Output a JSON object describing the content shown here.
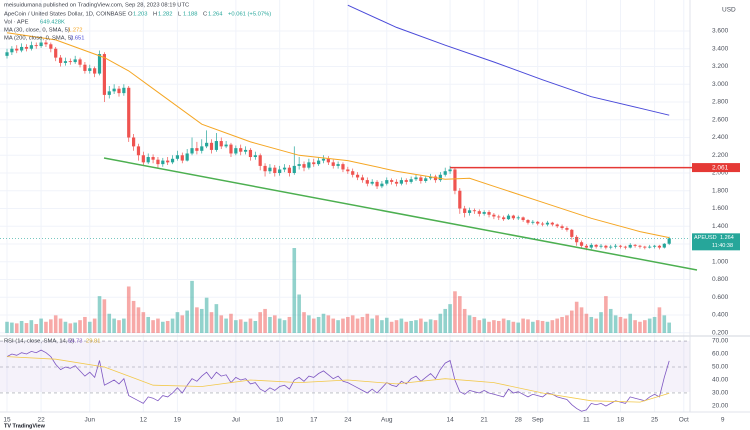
{
  "chart_data": {
    "type": "candlestick",
    "publisher": "meisuidumana published on TradingView.com, Sep 28, 2023 08:19 UTC",
    "title": "ApeCoin / United States Dollar, 1D, COINBASE",
    "ohlc_labels": [
      "O",
      "H",
      "L",
      "C"
    ],
    "change_label": "+0.061 (+5.07%)",
    "currency": "USD",
    "symbol": "APEUSD",
    "countdown": "11:40:38",
    "up_color": "#26a69a",
    "down_color": "#ef5350",
    "grid": true,
    "ohlc": [
      [
        3.32,
        3.4,
        3.29,
        3.36
      ],
      [
        3.36,
        3.43,
        3.33,
        3.4
      ],
      [
        3.4,
        3.44,
        3.35,
        3.38
      ],
      [
        3.38,
        3.46,
        3.36,
        3.42
      ],
      [
        3.42,
        3.45,
        3.37,
        3.4
      ],
      [
        3.4,
        3.48,
        3.38,
        3.44
      ],
      [
        3.44,
        3.47,
        3.4,
        3.43
      ],
      [
        3.43,
        3.52,
        3.41,
        3.47
      ],
      [
        3.47,
        3.5,
        3.42,
        3.45
      ],
      [
        3.45,
        3.47,
        3.36,
        3.4
      ],
      [
        3.4,
        3.42,
        3.26,
        3.3
      ],
      [
        3.3,
        3.33,
        3.2,
        3.24
      ],
      [
        3.24,
        3.3,
        3.21,
        3.26
      ],
      [
        3.26,
        3.29,
        3.22,
        3.25
      ],
      [
        3.25,
        3.32,
        3.23,
        3.28
      ],
      [
        3.28,
        3.3,
        3.19,
        3.22
      ],
      [
        3.22,
        3.25,
        3.12,
        3.15
      ],
      [
        3.15,
        3.22,
        3.12,
        3.18
      ],
      [
        3.18,
        3.2,
        3.08,
        3.12
      ],
      [
        3.12,
        3.38,
        3.1,
        3.34
      ],
      [
        3.34,
        3.36,
        2.8,
        2.88
      ],
      [
        2.88,
        2.98,
        2.84,
        2.92
      ],
      [
        2.92,
        3.0,
        2.89,
        2.95
      ],
      [
        2.95,
        2.98,
        2.86,
        2.9
      ],
      [
        2.9,
        3.0,
        2.87,
        2.96
      ],
      [
        2.96,
        2.98,
        2.35,
        2.4
      ],
      [
        2.4,
        2.44,
        2.25,
        2.3
      ],
      [
        2.3,
        2.33,
        2.14,
        2.2
      ],
      [
        2.2,
        2.24,
        2.08,
        2.12
      ],
      [
        2.12,
        2.22,
        2.1,
        2.18
      ],
      [
        2.18,
        2.21,
        2.11,
        2.15
      ],
      [
        2.15,
        2.18,
        2.06,
        2.1
      ],
      [
        2.1,
        2.17,
        2.07,
        2.14
      ],
      [
        2.14,
        2.18,
        2.09,
        2.12
      ],
      [
        2.12,
        2.2,
        2.1,
        2.16
      ],
      [
        2.16,
        2.25,
        2.14,
        2.2
      ],
      [
        2.2,
        2.23,
        2.11,
        2.14
      ],
      [
        2.14,
        2.27,
        2.13,
        2.22
      ],
      [
        2.22,
        2.4,
        2.2,
        2.28
      ],
      [
        2.28,
        2.35,
        2.21,
        2.25
      ],
      [
        2.25,
        2.38,
        2.22,
        2.3
      ],
      [
        2.3,
        2.48,
        2.28,
        2.34
      ],
      [
        2.34,
        2.38,
        2.22,
        2.26
      ],
      [
        2.26,
        2.45,
        2.24,
        2.36
      ],
      [
        2.36,
        2.4,
        2.27,
        2.3
      ],
      [
        2.3,
        2.36,
        2.28,
        2.32
      ],
      [
        2.32,
        2.34,
        2.18,
        2.22
      ],
      [
        2.22,
        2.31,
        2.2,
        2.28
      ],
      [
        2.28,
        2.32,
        2.2,
        2.24
      ],
      [
        2.24,
        2.3,
        2.21,
        2.26
      ],
      [
        2.26,
        2.28,
        2.14,
        2.18
      ],
      [
        2.18,
        2.24,
        2.15,
        2.2
      ],
      [
        2.2,
        2.22,
        2.03,
        2.08
      ],
      [
        2.08,
        2.11,
        1.96,
        2.02
      ],
      [
        2.02,
        2.1,
        1.99,
        2.06
      ],
      [
        2.06,
        2.09,
        1.96,
        2.0
      ],
      [
        2.0,
        2.08,
        1.97,
        2.04
      ],
      [
        2.04,
        2.1,
        2.01,
        2.06
      ],
      [
        2.06,
        2.09,
        1.96,
        2.0
      ],
      [
        2.0,
        2.3,
        1.98,
        2.08
      ],
      [
        2.08,
        2.18,
        2.04,
        2.1
      ],
      [
        2.1,
        2.13,
        2.02,
        2.06
      ],
      [
        2.06,
        2.16,
        2.04,
        2.12
      ],
      [
        2.12,
        2.16,
        2.07,
        2.1
      ],
      [
        2.1,
        2.18,
        2.08,
        2.14
      ],
      [
        2.14,
        2.2,
        2.11,
        2.16
      ],
      [
        2.16,
        2.19,
        2.09,
        2.12
      ],
      [
        2.12,
        2.15,
        2.05,
        2.08
      ],
      [
        2.08,
        2.13,
        2.05,
        2.1
      ],
      [
        2.1,
        2.12,
        2.01,
        2.04
      ],
      [
        2.04,
        2.07,
        1.99,
        2.02
      ],
      [
        2.02,
        2.05,
        1.95,
        1.98
      ],
      [
        1.98,
        2.01,
        1.92,
        1.95
      ],
      [
        1.95,
        1.98,
        1.89,
        1.92
      ],
      [
        1.92,
        1.95,
        1.85,
        1.88
      ],
      [
        1.88,
        1.93,
        1.86,
        1.9
      ],
      [
        1.9,
        1.92,
        1.82,
        1.85
      ],
      [
        1.85,
        1.91,
        1.83,
        1.88
      ],
      [
        1.88,
        1.95,
        1.86,
        1.92
      ],
      [
        1.92,
        1.94,
        1.87,
        1.9
      ],
      [
        1.9,
        1.93,
        1.85,
        1.88
      ],
      [
        1.88,
        1.95,
        1.86,
        1.92
      ],
      [
        1.92,
        1.94,
        1.87,
        1.9
      ],
      [
        1.9,
        1.96,
        1.88,
        1.93
      ],
      [
        1.93,
        1.98,
        1.91,
        1.95
      ],
      [
        1.95,
        1.97,
        1.88,
        1.91
      ],
      [
        1.91,
        1.97,
        1.89,
        1.94
      ],
      [
        1.94,
        1.99,
        1.92,
        1.96
      ],
      [
        1.96,
        1.98,
        1.89,
        1.92
      ],
      [
        1.92,
        2.01,
        1.9,
        1.98
      ],
      [
        1.98,
        2.06,
        1.96,
        2.02
      ],
      [
        2.02,
        2.08,
        1.99,
        2.04
      ],
      [
        2.04,
        2.06,
        1.76,
        1.8
      ],
      [
        1.8,
        1.83,
        1.54,
        1.6
      ],
      [
        1.6,
        1.63,
        1.5,
        1.55
      ],
      [
        1.55,
        1.61,
        1.52,
        1.58
      ],
      [
        1.58,
        1.6,
        1.54,
        1.57
      ],
      [
        1.57,
        1.59,
        1.51,
        1.54
      ],
      [
        1.54,
        1.58,
        1.52,
        1.56
      ],
      [
        1.56,
        1.58,
        1.5,
        1.53
      ],
      [
        1.53,
        1.55,
        1.48,
        1.51
      ],
      [
        1.51,
        1.53,
        1.47,
        1.5
      ],
      [
        1.5,
        1.52,
        1.46,
        1.48
      ],
      [
        1.48,
        1.54,
        1.47,
        1.52
      ],
      [
        1.52,
        1.53,
        1.47,
        1.49
      ],
      [
        1.49,
        1.52,
        1.47,
        1.5
      ],
      [
        1.5,
        1.51,
        1.45,
        1.47
      ],
      [
        1.47,
        1.48,
        1.42,
        1.44
      ],
      [
        1.44,
        1.47,
        1.42,
        1.45
      ],
      [
        1.45,
        1.46,
        1.41,
        1.43
      ],
      [
        1.43,
        1.45,
        1.4,
        1.42
      ],
      [
        1.42,
        1.46,
        1.4,
        1.44
      ],
      [
        1.44,
        1.45,
        1.4,
        1.42
      ],
      [
        1.42,
        1.43,
        1.38,
        1.4
      ],
      [
        1.4,
        1.42,
        1.36,
        1.38
      ],
      [
        1.38,
        1.4,
        1.34,
        1.36
      ],
      [
        1.36,
        1.37,
        1.25,
        1.28
      ],
      [
        1.28,
        1.3,
        1.18,
        1.22
      ],
      [
        1.22,
        1.24,
        1.15,
        1.18
      ],
      [
        1.18,
        1.2,
        1.13,
        1.16
      ],
      [
        1.16,
        1.21,
        1.14,
        1.19
      ],
      [
        1.19,
        1.2,
        1.15,
        1.17
      ],
      [
        1.17,
        1.2,
        1.15,
        1.18
      ],
      [
        1.18,
        1.19,
        1.14,
        1.16
      ],
      [
        1.16,
        1.19,
        1.14,
        1.17
      ],
      [
        1.17,
        1.2,
        1.15,
        1.18
      ],
      [
        1.18,
        1.19,
        1.15,
        1.17
      ],
      [
        1.17,
        1.18,
        1.14,
        1.16
      ],
      [
        1.16,
        1.21,
        1.15,
        1.19
      ],
      [
        1.19,
        1.2,
        1.16,
        1.18
      ],
      [
        1.18,
        1.19,
        1.15,
        1.17
      ],
      [
        1.17,
        1.18,
        1.14,
        1.16
      ],
      [
        1.16,
        1.19,
        1.15,
        1.17
      ],
      [
        1.17,
        1.19,
        1.15,
        1.18
      ],
      [
        1.18,
        1.19,
        1.14,
        1.16
      ],
      [
        1.16,
        1.21,
        1.15,
        1.203
      ],
      [
        1.203,
        1.282,
        1.188,
        1.264
      ]
    ],
    "xlim": [
      -1.44,
      152.6
    ],
    "xticks": [
      {
        "value": 0,
        "label": "15"
      },
      {
        "value": 7,
        "label": "22"
      },
      {
        "value": 17,
        "label": "Jun"
      },
      {
        "value": 28,
        "label": "12"
      },
      {
        "value": 35,
        "label": "19"
      },
      {
        "value": 47,
        "label": "Jul"
      },
      {
        "value": 56,
        "label": "10"
      },
      {
        "value": 63,
        "label": "17"
      },
      {
        "value": 70,
        "label": "24"
      },
      {
        "value": 78,
        "label": "Aug"
      },
      {
        "value": 91,
        "label": "14"
      },
      {
        "value": 98,
        "label": "21"
      },
      {
        "value": 105,
        "label": "28"
      },
      {
        "value": 109,
        "label": "Sep"
      },
      {
        "value": 119,
        "label": "11"
      },
      {
        "value": 126,
        "label": "18"
      },
      {
        "value": 133,
        "label": "25"
      },
      {
        "value": 139,
        "label": "Oct"
      },
      {
        "value": 147,
        "label": "9"
      }
    ],
    "ylim": [
      0.175,
      3.949
    ],
    "yticks": [
      {
        "value": 3.6,
        "label": "3.600"
      },
      {
        "value": 3.4,
        "label": "3.400"
      },
      {
        "value": 3.2,
        "label": "3.200"
      },
      {
        "value": 3.0,
        "label": "3.000"
      },
      {
        "value": 2.8,
        "label": "2.800"
      },
      {
        "value": 2.6,
        "label": "2.600"
      },
      {
        "value": 2.4,
        "label": "2.400"
      },
      {
        "value": 2.2,
        "label": "2.200"
      },
      {
        "value": 2.0,
        "label": "2.000"
      },
      {
        "value": 1.8,
        "label": "1.800"
      },
      {
        "value": 1.6,
        "label": "1.600"
      },
      {
        "value": 1.4,
        "label": "1.400"
      },
      {
        "value": 1.2,
        "label": "1.200"
      },
      {
        "value": 1.0,
        "label": "1.000"
      },
      {
        "value": 0.8,
        "label": "0.800"
      },
      {
        "value": 0.6,
        "label": "0.600"
      },
      {
        "value": 0.4,
        "label": "0.400"
      },
      {
        "value": 0.2,
        "label": "0.200"
      }
    ],
    "hline": {
      "value": 2.061,
      "color": "#e53935"
    },
    "volume": {
      "name": "Vol · APE",
      "value_label": "649.428K",
      "values": [
        700,
        650,
        600,
        750,
        620,
        800,
        560,
        900,
        700,
        850,
        1100,
        900,
        700,
        600,
        650,
        800,
        1000,
        700,
        900,
        2300,
        2100,
        1200,
        900,
        800,
        900,
        2900,
        2000,
        1600,
        1300,
        1000,
        800,
        900,
        700,
        750,
        900,
        1300,
        1100,
        1400,
        3250,
        1600,
        1500,
        2200,
        1300,
        1800,
        1100,
        900,
        1200,
        800,
        850,
        700,
        900,
        750,
        1300,
        1500,
        1000,
        1100,
        900,
        800,
        1000,
        5300,
        2400,
        1300,
        1100,
        900,
        1000,
        1200,
        1100,
        900,
        800,
        900,
        1000,
        1100,
        900,
        1000,
        1200,
        900,
        1100,
        800,
        950,
        700,
        800,
        900,
        700,
        750,
        800,
        900,
        700,
        850,
        800,
        1200,
        1500,
        1800,
        2600,
        2300,
        1500,
        1100,
        1000,
        800,
        900,
        700,
        800,
        750,
        900,
        800,
        700,
        650,
        900,
        850,
        700,
        800,
        750,
        700,
        800,
        900,
        1000,
        1100,
        1400,
        1950,
        1600,
        1200,
        1000,
        900,
        1300,
        2300,
        1500,
        1100,
        1000,
        900,
        1200,
        800,
        700,
        800,
        900,
        1000,
        1600,
        1100,
        649.428
      ]
    },
    "ma": [
      {
        "name": "MA (30, close, 0, SMA, 5)",
        "color": "#f5a623",
        "x": [
          0,
          10,
          20,
          25,
          30,
          40,
          50,
          60,
          70,
          80,
          90,
          95,
          100,
          110,
          120,
          130,
          136
        ],
        "values": [
          3.58,
          3.5,
          3.3,
          3.15,
          2.95,
          2.55,
          2.35,
          2.2,
          2.14,
          2.02,
          1.93,
          1.94,
          1.85,
          1.67,
          1.49,
          1.34,
          1.272
        ]
      },
      {
        "name": "MA (200, close, 0, SMA, 5)",
        "color": "#4a4ad9",
        "x": [
          70,
          80,
          90,
          100,
          110,
          120,
          130,
          136
        ],
        "values": [
          3.89,
          3.64,
          3.44,
          3.25,
          3.05,
          2.86,
          2.73,
          2.651
        ]
      }
    ],
    "rsi": {
      "name": "RSI (14, close, SMA, 14, 2)",
      "color": "#7e57c2",
      "values": [
        58,
        60,
        59,
        61,
        60,
        62,
        61,
        63,
        61,
        58,
        52,
        48,
        50,
        49,
        51,
        47,
        43,
        46,
        42,
        55,
        36,
        38,
        40,
        37,
        41,
        28,
        26,
        24,
        22,
        27,
        26,
        24,
        28,
        27,
        30,
        34,
        30,
        36,
        41,
        39,
        43,
        46,
        41,
        46,
        43,
        44,
        38,
        42,
        40,
        41,
        37,
        38,
        33,
        31,
        34,
        32,
        35,
        36,
        33,
        40,
        42,
        39,
        43,
        42,
        45,
        47,
        44,
        41,
        43,
        39,
        38,
        36,
        34,
        32,
        30,
        33,
        30,
        34,
        38,
        36,
        35,
        39,
        37,
        41,
        43,
        39,
        42,
        45,
        41,
        48,
        53,
        55,
        40,
        31,
        29,
        32,
        31,
        30,
        32,
        30,
        29,
        28,
        27,
        33,
        30,
        31,
        29,
        27,
        29,
        28,
        27,
        30,
        29,
        27,
        26,
        25,
        21,
        18,
        16,
        17,
        22,
        21,
        22,
        20,
        22,
        24,
        23,
        22,
        27,
        26,
        25,
        24,
        27,
        29,
        27,
        42,
        54.73
      ],
      "ma": {
        "color": "#f2c94c",
        "x": [
          0,
          10,
          20,
          30,
          40,
          50,
          60,
          70,
          80,
          90,
          100,
          110,
          120,
          130,
          136
        ],
        "values": [
          58,
          56,
          50,
          36,
          35,
          40,
          38,
          40,
          37,
          41,
          38,
          30,
          24,
          23,
          29.81
        ]
      },
      "ylim": [
        16.9,
        73.1
      ],
      "yticks": [
        {
          "value": 70,
          "label": "70.00"
        },
        {
          "value": 60,
          "label": "60.00"
        },
        {
          "value": 50,
          "label": "50.00"
        },
        {
          "value": 40,
          "label": "40.00"
        },
        {
          "value": 30,
          "label": "30.00"
        },
        {
          "value": 20,
          "label": "20.00"
        }
      ]
    }
  }
}
